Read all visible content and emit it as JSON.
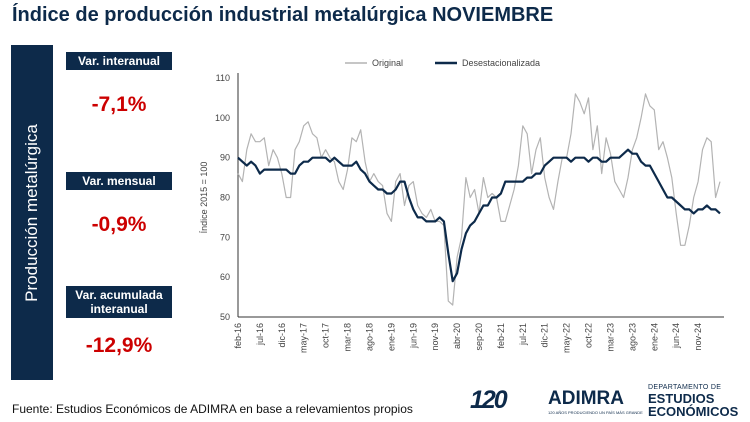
{
  "title": "Índice de producción industrial metalúrgica NOVIEMBRE",
  "side_label": "Producción metalúrgica",
  "metrics": [
    {
      "label": "Var. interanual",
      "value": "-7,1%"
    },
    {
      "label": "Var. mensual",
      "value": "-0,9%"
    },
    {
      "label": "Var. acumulada interanual",
      "value": "-12,9%"
    }
  ],
  "source": "Fuente: Estudios Económicos de ADIMRA en base a relevamientos propios",
  "logos": {
    "anniversary": "120",
    "brand": "ADIMRA",
    "brand_sub": "120 AÑOS PRODUCIENDO UN PAÍS MÁS GRANDE",
    "dept_top": "DEPARTAMENTO DE",
    "dept_line1": "ESTUDIOS",
    "dept_line2": "ECONÓMICOS"
  },
  "colors": {
    "navy": "#0d2a4a",
    "original": "#b3b3b3",
    "deseasonalized": "#0d2a4a",
    "negative": "#cc0000"
  },
  "chart_data": {
    "type": "line",
    "ylabel": "Índice 2015 = 100",
    "xlabel": "",
    "ylim": [
      50,
      110
    ],
    "yticks": [
      50,
      60,
      70,
      80,
      90,
      100,
      110
    ],
    "grid": false,
    "legend": "top",
    "x_ticks": [
      "feb-16",
      "jul-16",
      "dic-16",
      "may-17",
      "oct-17",
      "mar-18",
      "ago-18",
      "ene-19",
      "jun-19",
      "nov-19",
      "abr-20",
      "sep-20",
      "feb-21",
      "jul-21",
      "dic-21",
      "may-22",
      "oct-22",
      "mar-23",
      "ago-23",
      "ene-24",
      "jun-24",
      "nov-24"
    ],
    "series": [
      {
        "name": "Original",
        "values": [
          86,
          84,
          92,
          96,
          94,
          94,
          95,
          88,
          92,
          90,
          86,
          80,
          80,
          92,
          94,
          98,
          99,
          96,
          95,
          90,
          92,
          90,
          89,
          84,
          82,
          87,
          95,
          94,
          97,
          89,
          84,
          86,
          84,
          83,
          76,
          74,
          84,
          86,
          78,
          83,
          84,
          78,
          76,
          75,
          77,
          74,
          74,
          73,
          54,
          53,
          65,
          70,
          85,
          80,
          82,
          76,
          85,
          80,
          81,
          80,
          74,
          74,
          78,
          82,
          88,
          98,
          96,
          86,
          92,
          95,
          85,
          80,
          77,
          84,
          90,
          90,
          96,
          106,
          104,
          101,
          105,
          92,
          98,
          86,
          95,
          91,
          84,
          82,
          80,
          85,
          92,
          95,
          100,
          106,
          103,
          102,
          92,
          94,
          90,
          85,
          76,
          68,
          68,
          73,
          80,
          84,
          92,
          95,
          94,
          80,
          84
        ],
        "color": "#b3b3b3"
      },
      {
        "name": "Desestacionalizada",
        "values": [
          90,
          89,
          88,
          89,
          88,
          86,
          87,
          87,
          87,
          87,
          87,
          87,
          86,
          86,
          88,
          89,
          89,
          90,
          90,
          90,
          90,
          89,
          90,
          89,
          88,
          88,
          88,
          89,
          87,
          86,
          84,
          83,
          82,
          82,
          81,
          81,
          82,
          84,
          84,
          80,
          77,
          75,
          75,
          74,
          74,
          74,
          75,
          74,
          66,
          59,
          61,
          67,
          71,
          73,
          74,
          76,
          78,
          78,
          80,
          80,
          81,
          84,
          84,
          84,
          84,
          84,
          85,
          85,
          86,
          86,
          88,
          89,
          90,
          90,
          90,
          90,
          89,
          90,
          90,
          90,
          89,
          90,
          90,
          89,
          89,
          90,
          90,
          90,
          91,
          92,
          91,
          91,
          89,
          88,
          88,
          86,
          84,
          82,
          80,
          80,
          79,
          78,
          77,
          77,
          76,
          77,
          77,
          78,
          77,
          77,
          76
        ],
        "color": "#0d2a4a"
      }
    ]
  }
}
